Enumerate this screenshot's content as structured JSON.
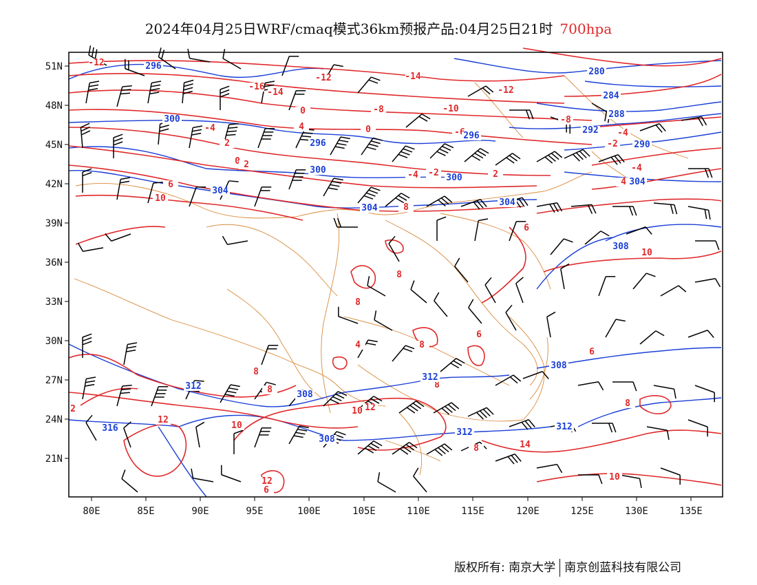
{
  "title": {
    "main": "2024年04月25日WRF/cmaq模式36km预报产品:04月25日21时",
    "level": "700hpa",
    "level_color": "#e0282a"
  },
  "map": {
    "lat_labels": [
      "51N",
      "48N",
      "45N",
      "42N",
      "39N",
      "36N",
      "33N",
      "30N",
      "27N",
      "24N",
      "21N"
    ],
    "lon_labels": [
      "80E",
      "85E",
      "90E",
      "95E",
      "100E",
      "105E",
      "110E",
      "115E",
      "120E",
      "125E",
      "130E",
      "135E"
    ],
    "contour_colors": {
      "temperature": "#e0282a",
      "geopotential": "#1a3fd6",
      "wind": "#000000",
      "boundary": "#d98a3a"
    },
    "temperature_labels": [
      "-12",
      "-16",
      "-14",
      "-12",
      "-14",
      "-12",
      "-8",
      "-10",
      "-8",
      "-6",
      "-4",
      "-2",
      "0",
      "-4",
      "2",
      "0",
      "2",
      "6",
      "10",
      "8",
      "-4",
      "-2",
      "2",
      "-4",
      "0",
      "4",
      "6",
      "8",
      "8",
      "8",
      "6",
      "6",
      "8",
      "8",
      "8",
      "10",
      "12",
      "10",
      "8",
      "14",
      "12",
      "12",
      "10",
      "8",
      "6",
      "10",
      "4",
      "2",
      "4"
    ],
    "height_labels": [
      "296",
      "300",
      "296",
      "300",
      "304",
      "304",
      "300",
      "296",
      "288",
      "284",
      "280",
      "292",
      "290",
      "304",
      "304",
      "308",
      "308",
      "312",
      "308",
      "312",
      "316",
      "308",
      "312",
      "312"
    ]
  },
  "footer": {
    "copyright": "版权所有: 南京大学",
    "company": "南京创蓝科技有限公司"
  }
}
